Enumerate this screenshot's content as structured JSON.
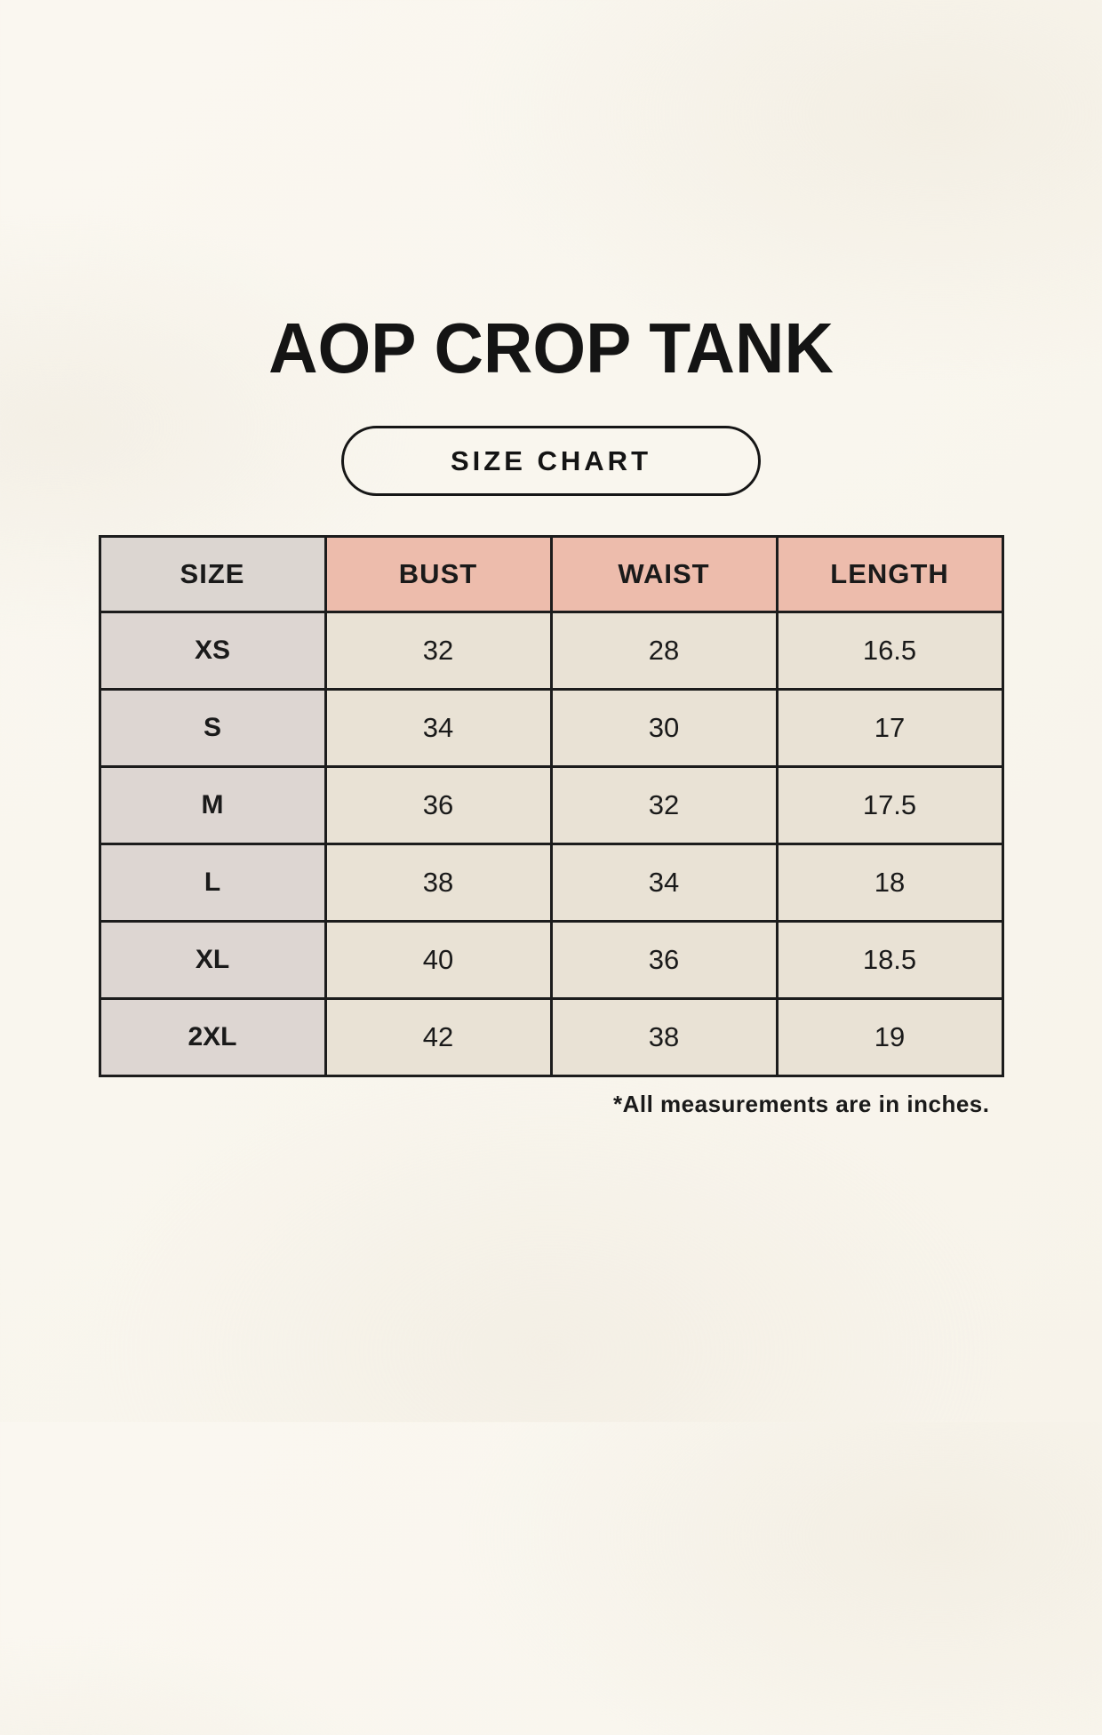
{
  "page": {
    "title": "AOP CROP TANK",
    "badge_label": "SIZE CHART",
    "footnote": "*All measurements are in inches."
  },
  "colors": {
    "background": "#f9f6ee",
    "header_pink": "#edbcac",
    "size_column_gray": "#ddd6d2",
    "value_cell_cream": "#e9e2d5",
    "border_black": "#1c1c1c",
    "text": "#1a1a1a"
  },
  "size_table": {
    "headers": [
      "SIZE",
      "BUST",
      "WAIST",
      "LENGTH"
    ],
    "rows": [
      [
        "XS",
        "32",
        "28",
        "16.5"
      ],
      [
        "S",
        "34",
        "30",
        "17"
      ],
      [
        "M",
        "36",
        "32",
        "17.5"
      ],
      [
        "L",
        "38",
        "34",
        "18"
      ],
      [
        "XL",
        "40",
        "36",
        "18.5"
      ],
      [
        "2XL",
        "42",
        "38",
        "19"
      ]
    ]
  }
}
